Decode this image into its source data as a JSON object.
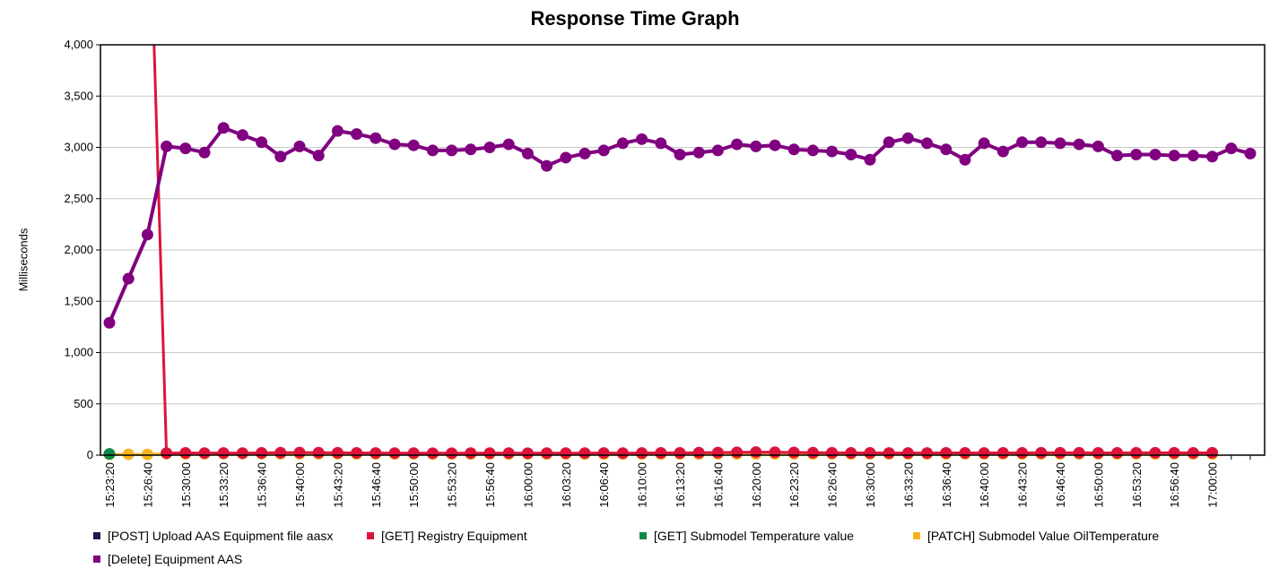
{
  "chart_data": {
    "type": "line",
    "title": "Response Time Graph",
    "ylabel": "Milliseconds",
    "xlabel": "",
    "ylim": [
      0,
      4000
    ],
    "y_ticks": [
      "0",
      "500",
      "1,000",
      "1,500",
      "2,000",
      "2,500",
      "3,000",
      "3,500",
      "4,000"
    ],
    "x_tick_labels": [
      "15:23:20",
      "15:26:40",
      "15:30:00",
      "15:33:20",
      "15:36:40",
      "15:40:00",
      "15:43:20",
      "15:46:40",
      "15:50:00",
      "15:53:20",
      "15:56:40",
      "16:00:00",
      "16:03:20",
      "16:06:40",
      "16:10:00",
      "16:13:20",
      "16:16:40",
      "16:20:00",
      "16:23:20",
      "16:26:40",
      "16:30:00",
      "16:33:20",
      "16:36:40",
      "16:40:00",
      "16:43:20",
      "16:46:40",
      "16:50:00",
      "16:53:20",
      "16:56:40",
      "17:00:00"
    ],
    "x_start": "15:23:20",
    "x_step": "00:01:40",
    "grid": true,
    "legend_position": "bottom",
    "series": [
      {
        "name": "[POST] Upload AAS Equipment file aasx",
        "color": "#1a1a4f",
        "markers": false,
        "x": [
          "15:23:20"
        ],
        "values": [
          0
        ]
      },
      {
        "name": "[GET] Registry Equipment",
        "color": "#dc143c",
        "markers": true,
        "x": [
          "15:26:40",
          "15:27:15",
          "15:28:20",
          "15:30:00",
          "15:31:40",
          "15:33:20",
          "15:35:00",
          "15:36:40",
          "15:38:20",
          "15:40:00",
          "15:41:40",
          "15:43:20",
          "15:45:00",
          "15:46:40",
          "15:48:20",
          "15:50:00",
          "15:51:40",
          "15:53:20",
          "15:55:00",
          "15:56:40",
          "15:58:20",
          "16:00:00",
          "16:01:40",
          "16:03:20",
          "16:05:00",
          "16:06:40",
          "16:08:20",
          "16:10:00",
          "16:11:40",
          "16:13:20",
          "16:15:00",
          "16:16:40",
          "16:18:20",
          "16:20:00",
          "16:21:40",
          "16:23:20",
          "16:25:00",
          "16:26:40",
          "16:28:20",
          "16:30:00",
          "16:31:40",
          "16:33:20",
          "16:35:00",
          "16:36:40",
          "16:38:20",
          "16:40:00",
          "16:41:40",
          "16:43:20",
          "16:45:00",
          "16:46:40",
          "16:48:20",
          "16:50:00",
          "16:51:40",
          "16:53:20",
          "16:55:00",
          "16:56:40",
          "16:58:20",
          "17:00:00"
        ],
        "values": [
          null,
          4000,
          20,
          22,
          20,
          21,
          20,
          22,
          24,
          25,
          24,
          23,
          22,
          21,
          20,
          20,
          19,
          19,
          20,
          20,
          20,
          19,
          20,
          20,
          20,
          21,
          20,
          21,
          22,
          22,
          24,
          25,
          27,
          30,
          28,
          26,
          24,
          23,
          22,
          22,
          21,
          21,
          21,
          22,
          22,
          21,
          22,
          22,
          23,
          23,
          23,
          22,
          22,
          23,
          23,
          23,
          22,
          23
        ]
      },
      {
        "name": "[GET] Submodel Temperature value",
        "color": "#0a8a4a",
        "markers": true,
        "x": [
          "15:23:20"
        ],
        "values": [
          12
        ]
      },
      {
        "name": "[PATCH] Submodel Value OilTemperature",
        "color": "#f5b41e",
        "markers": true,
        "x": [
          "15:23:20",
          "15:25:00",
          "15:26:40",
          "15:28:20",
          "15:30:00",
          "15:31:40",
          "15:33:20",
          "15:35:00",
          "15:36:40",
          "15:38:20",
          "15:40:00",
          "15:41:40",
          "15:43:20",
          "15:45:00",
          "15:46:40",
          "15:48:20",
          "15:50:00",
          "15:51:40",
          "15:53:20",
          "15:55:00",
          "15:56:40",
          "15:58:20",
          "16:00:00",
          "16:01:40",
          "16:03:20",
          "16:05:00",
          "16:06:40",
          "16:08:20",
          "16:10:00",
          "16:11:40",
          "16:13:20",
          "16:15:00",
          "16:16:40",
          "16:18:20",
          "16:20:00",
          "16:21:40",
          "16:23:20",
          "16:25:00",
          "16:26:40",
          "16:28:20",
          "16:30:00",
          "16:31:40",
          "16:33:20",
          "16:35:00",
          "16:36:40",
          "16:38:20",
          "16:40:00",
          "16:41:40",
          "16:43:20",
          "16:45:00",
          "16:46:40",
          "16:48:20",
          "16:50:00",
          "16:51:40",
          "16:53:20",
          "16:55:00",
          "16:56:40",
          "16:58:20",
          "17:00:00"
        ],
        "values": [
          8,
          8,
          7,
          15,
          12,
          13,
          14,
          14,
          14,
          13,
          13,
          13,
          13,
          12,
          12,
          12,
          12,
          11,
          11,
          11,
          11,
          11,
          11,
          11,
          11,
          11,
          11,
          11,
          11,
          11,
          11,
          11,
          12,
          12,
          12,
          12,
          12,
          12,
          12,
          12,
          12,
          12,
          12,
          12,
          12,
          12,
          12,
          12,
          12,
          12,
          12,
          12,
          12,
          12,
          12,
          12,
          12,
          12,
          12
        ]
      },
      {
        "name": "[Delete] Equipment AAS",
        "color": "#800080",
        "markers": true,
        "x": [
          "15:23:20",
          "15:25:00",
          "15:26:40",
          "15:28:20",
          "15:30:00",
          "15:31:40",
          "15:33:20",
          "15:35:00",
          "15:36:40",
          "15:38:20",
          "15:40:00",
          "15:41:40",
          "15:43:20",
          "15:45:00",
          "15:46:40",
          "15:48:20",
          "15:50:00",
          "15:51:40",
          "15:53:20",
          "15:55:00",
          "15:56:40",
          "15:58:20",
          "16:00:00",
          "16:01:40",
          "16:03:20",
          "16:05:00",
          "16:06:40",
          "16:08:20",
          "16:10:00",
          "16:11:40",
          "16:13:20",
          "16:15:00",
          "16:16:40",
          "16:18:20",
          "16:20:00",
          "16:21:40",
          "16:23:20",
          "16:25:00",
          "16:26:40",
          "16:28:20",
          "16:30:00",
          "16:31:40",
          "16:33:20",
          "16:35:00",
          "16:36:40",
          "16:38:20",
          "16:40:00",
          "16:41:40",
          "16:43:20",
          "16:45:00",
          "16:46:40",
          "16:48:20",
          "16:50:00",
          "16:51:40",
          "16:53:20",
          "16:55:00",
          "16:56:40",
          "16:58:20",
          "17:00:00",
          "17:01:40",
          "17:03:20"
        ],
        "values": [
          1290,
          1720,
          2150,
          3010,
          2990,
          2950,
          3190,
          3120,
          3050,
          2910,
          3010,
          2920,
          3160,
          3130,
          3090,
          3030,
          3020,
          2970,
          2970,
          2980,
          3000,
          3030,
          2940,
          2820,
          2900,
          2940,
          2970,
          3040,
          3080,
          3040,
          2930,
          2950,
          2970,
          3030,
          3010,
          3020,
          2980,
          2970,
          2960,
          2930,
          2880,
          3050,
          3090,
          3040,
          2980,
          2880,
          3040,
          2960,
          3050,
          3050,
          3040,
          3030,
          3010,
          2920,
          2930,
          2930,
          2920,
          2920,
          2910,
          2990,
          2940
        ]
      }
    ]
  }
}
